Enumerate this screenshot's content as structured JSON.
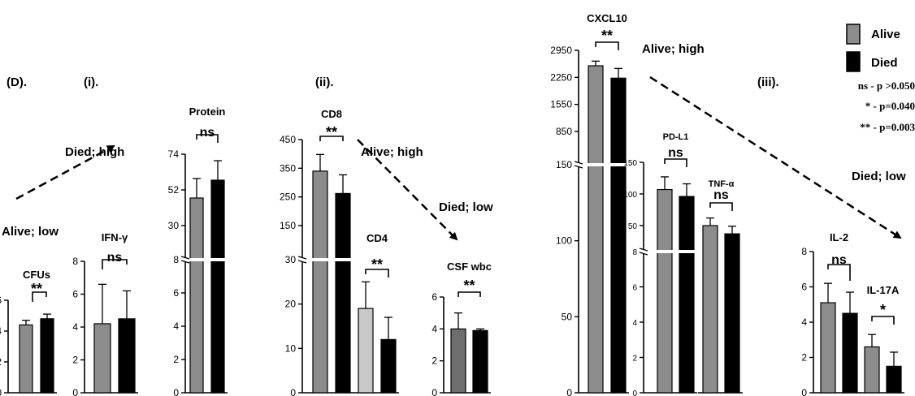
{
  "panel_labels": {
    "d": "(D).",
    "i": "(i).",
    "ii": "(ii).",
    "iii": "(iii)."
  },
  "arrow_labels": [
    "Alive; low",
    "Died; high",
    "Alive; high",
    "Died; low",
    "Alive; high",
    "Died; low"
  ],
  "legend": {
    "alive": "Alive",
    "died": "Died",
    "alive_color": "#8c8c8c",
    "died_color": "#000000",
    "notes": [
      "ns - p >0.050",
      "* - p=0.040",
      "** - p=0.003"
    ]
  },
  "chart_data": [
    {
      "id": "cfus",
      "type": "bar",
      "title": "CFUs",
      "sig": "**",
      "categories": [
        "Alive",
        "Died"
      ],
      "values": [
        4.4,
        4.8
      ],
      "errors": [
        0.3,
        0.3
      ],
      "yticks": [
        0,
        2,
        4,
        6
      ],
      "ylim": [
        0,
        6
      ]
    },
    {
      "id": "ifng",
      "type": "bar",
      "title": "IFN-γ",
      "sig": "ns",
      "categories": [
        "Alive",
        "Died"
      ],
      "values": [
        4.2,
        4.5
      ],
      "errors": [
        2.4,
        1.7
      ],
      "yticks": [
        0,
        2,
        4,
        6,
        8
      ],
      "ylim": [
        0,
        8
      ]
    },
    {
      "id": "protein",
      "type": "bar",
      "title": "Protein",
      "sig": "ns",
      "categories": [
        "Alive",
        "Died"
      ],
      "values": [
        47,
        58
      ],
      "errors": [
        12,
        12
      ],
      "yticks": [
        0,
        2,
        4,
        6,
        8,
        30,
        52,
        74
      ],
      "axis_break": [
        8,
        30
      ]
    },
    {
      "id": "cd8",
      "type": "bar",
      "title": "CD8",
      "sig": "**",
      "categories": [
        "Alive",
        "Died"
      ],
      "values": [
        340,
        262
      ],
      "errors": [
        58,
        65
      ],
      "yticks": [
        0,
        10,
        20,
        30,
        150,
        250,
        350,
        450
      ],
      "axis_break": [
        30,
        150
      ]
    },
    {
      "id": "cd4",
      "type": "bar",
      "title": "CD4",
      "sig": "**",
      "categories": [
        "Alive",
        "Died"
      ],
      "values": [
        19,
        12
      ],
      "errors": [
        6,
        5
      ],
      "colors": [
        "#c8c8c8",
        "#000000"
      ]
    },
    {
      "id": "csfwbc",
      "type": "bar",
      "title": "CSF wbc",
      "sig": "**",
      "categories": [
        "Alive",
        "Died"
      ],
      "values": [
        4.0,
        3.9
      ],
      "errors": [
        1.0,
        0.1
      ],
      "yticks": [
        0,
        2,
        4,
        6
      ],
      "ylim": [
        0,
        6
      ],
      "colors": [
        "#6e6e6e",
        "#000000"
      ]
    },
    {
      "id": "cxcl10",
      "type": "bar",
      "title": "CXCL10",
      "sig": "**",
      "categories": [
        "Alive",
        "Died"
      ],
      "values": [
        2550,
        2230
      ],
      "errors": [
        120,
        250
      ],
      "yticks": [
        0,
        50,
        100,
        150,
        850,
        1550,
        2250,
        2950
      ],
      "axis_break": [
        150,
        850
      ]
    },
    {
      "id": "pdl1",
      "type": "bar",
      "title": "PD-L1",
      "sig": "ns",
      "categories": [
        "Alive",
        "Died"
      ],
      "values": [
        107,
        96
      ],
      "errors": [
        20,
        20
      ],
      "yticks": [
        0,
        2,
        4,
        6,
        8,
        50,
        100,
        150
      ],
      "axis_break": [
        8,
        50
      ]
    },
    {
      "id": "tnfa",
      "type": "bar",
      "title": "TNF-α",
      "sig": "ns",
      "categories": [
        "Alive",
        "Died"
      ],
      "values": [
        50,
        37
      ],
      "errors": [
        12,
        12
      ]
    },
    {
      "id": "il2",
      "type": "bar",
      "title": "IL-2",
      "sig": "ns",
      "categories": [
        "Alive",
        "Died"
      ],
      "values": [
        5.1,
        4.5
      ],
      "errors": [
        1.1,
        1.2
      ],
      "yticks": [
        0,
        2,
        4,
        6,
        8
      ],
      "ylim": [
        0,
        8
      ]
    },
    {
      "id": "il17a",
      "type": "bar",
      "title": "IL-17A",
      "sig": "*",
      "categories": [
        "Alive",
        "Died"
      ],
      "values": [
        2.6,
        1.5
      ],
      "errors": [
        0.7,
        0.8
      ]
    }
  ]
}
